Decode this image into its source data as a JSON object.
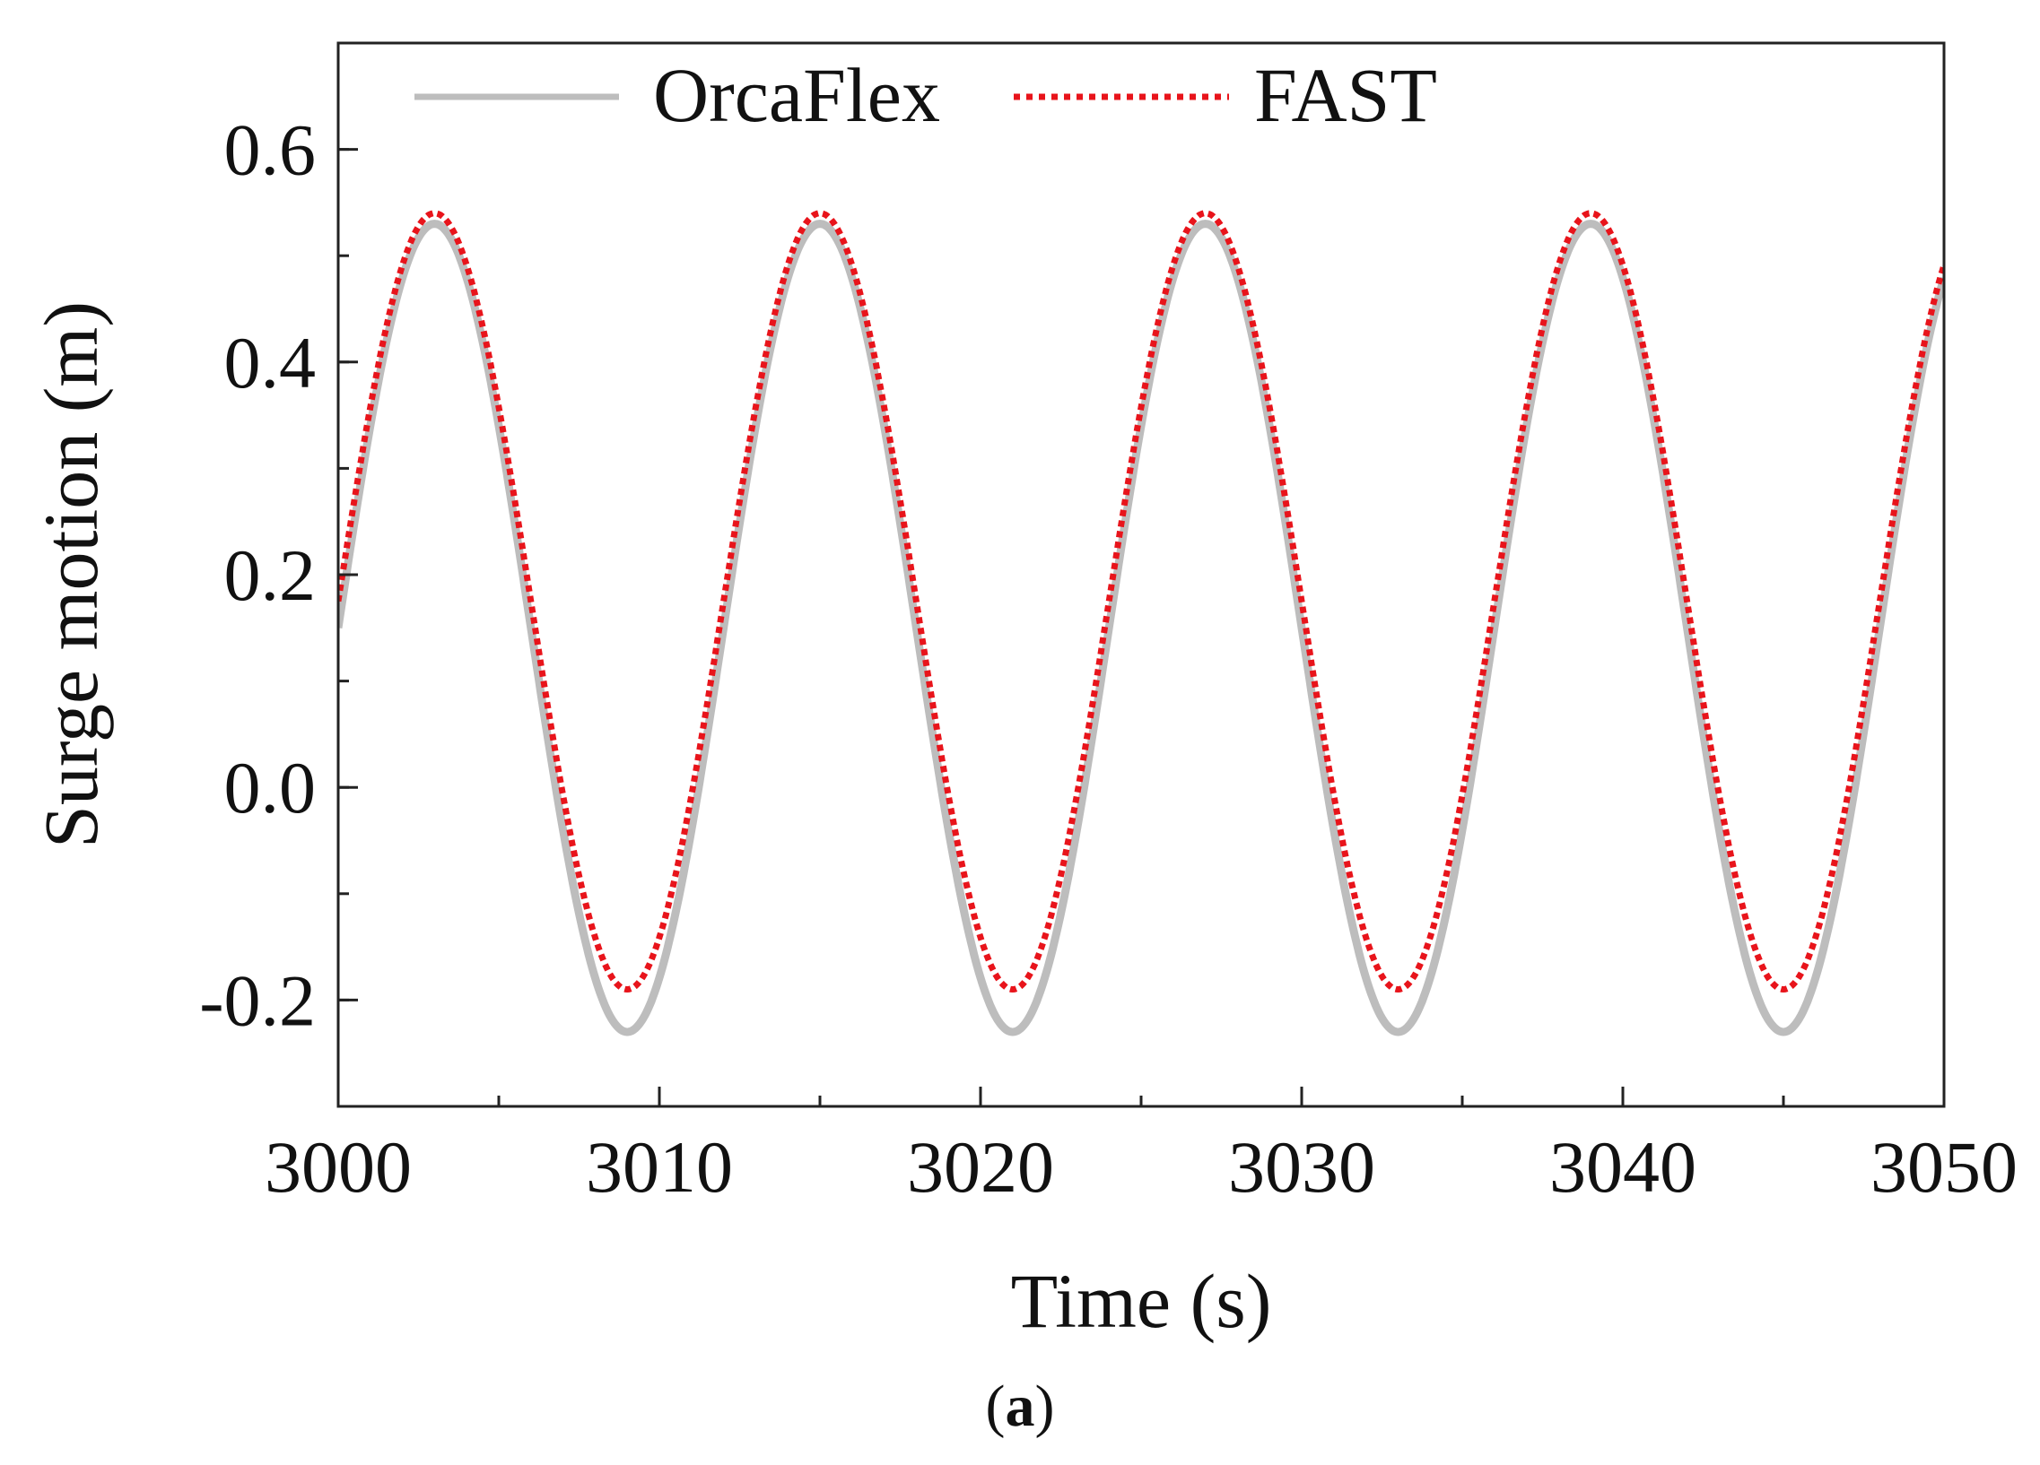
{
  "chart_data": {
    "type": "line",
    "title": "",
    "xlabel": "Time (s)",
    "ylabel": "Surge motion (m)",
    "xlim": [
      3000,
      3050
    ],
    "ylim": [
      -0.3,
      0.7
    ],
    "xticks": [
      3000,
      3010,
      3020,
      3030,
      3040,
      3050
    ],
    "xtick_labels": [
      "3000",
      "3010",
      "3020",
      "3030",
      "3040",
      "3050"
    ],
    "yticks": [
      -0.2,
      0.0,
      0.2,
      0.4,
      0.6
    ],
    "ytick_labels": [
      "-0.2",
      "0.0",
      "0.2",
      "0.4",
      "0.6"
    ],
    "legend_position": "top",
    "period_s": 12,
    "series": [
      {
        "name": "OrcaFlex",
        "style": "solid",
        "color": "#bdbdbd",
        "x": [
          3000,
          3003,
          3009,
          3015,
          3021,
          3027,
          3033,
          3039,
          3045,
          3050
        ],
        "y": [
          0.15,
          0.53,
          -0.23,
          0.53,
          -0.23,
          0.53,
          -0.23,
          0.53,
          -0.23,
          0.45
        ]
      },
      {
        "name": "FAST",
        "style": "dotted",
        "color": "#e8141b",
        "x": [
          3000,
          3003,
          3009,
          3015,
          3021,
          3027,
          3033,
          3039,
          3045,
          3050
        ],
        "y": [
          0.19,
          0.54,
          -0.19,
          0.54,
          -0.19,
          0.54,
          -0.19,
          0.54,
          -0.19,
          0.49
        ]
      }
    ]
  },
  "caption": {
    "open": "(",
    "letter": "a",
    "close": ")"
  }
}
